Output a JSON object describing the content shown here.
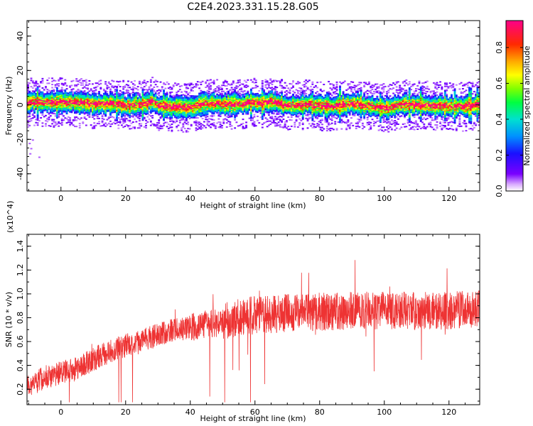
{
  "title": "C2E4.2023.331.15.28.G05",
  "chart_data": [
    {
      "type": "heatmap",
      "xlabel": "Height of straight line (km)",
      "ylabel": "Frequency (Hz)",
      "xlim": [
        -10.5,
        129.5
      ],
      "ylim": [
        -50,
        49
      ],
      "xticks": [
        0,
        20,
        40,
        60,
        80,
        100,
        120
      ],
      "yticks": [
        -40,
        -20,
        0,
        20,
        40
      ],
      "colorbar": {
        "label": "Normalized spectral amplitude",
        "range": [
          0.0,
          0.95
        ],
        "ticks": [
          0.0,
          0.2,
          0.4,
          0.6,
          0.8
        ],
        "tick_labels": [
          "0.0",
          "0.2",
          "0.4",
          "0.6",
          "0.8"
        ]
      },
      "ridge_center_hz": [
        [
          -10,
          1.5
        ],
        [
          -5,
          1.5
        ],
        [
          0,
          1.5
        ],
        [
          5,
          1.2
        ],
        [
          10,
          0.6
        ],
        [
          15,
          0.6
        ],
        [
          20,
          -0.5
        ],
        [
          25,
          0.3
        ],
        [
          28,
          2.0
        ],
        [
          30,
          -0.8
        ],
        [
          35,
          -1.3
        ],
        [
          40,
          -1.3
        ],
        [
          45,
          0.8
        ],
        [
          50,
          0.3
        ],
        [
          55,
          0.4
        ],
        [
          60,
          1.0
        ],
        [
          65,
          1.8
        ],
        [
          70,
          -0.7
        ],
        [
          75,
          0.2
        ],
        [
          80,
          -0.7
        ],
        [
          85,
          -0.6
        ],
        [
          90,
          0.6
        ],
        [
          95,
          -0.8
        ],
        [
          100,
          -2.3
        ],
        [
          105,
          0.2
        ],
        [
          110,
          0.0
        ],
        [
          115,
          -0.8
        ],
        [
          120,
          -0.9
        ],
        [
          125,
          -0.9
        ],
        [
          129,
          0.3
        ]
      ]
    },
    {
      "type": "line",
      "xlabel": "Height of straight line (km)",
      "ylabel": "SNR (10 * v/v)",
      "y_scale_label": "(x10^4)",
      "xlim": [
        -10.5,
        129.5
      ],
      "ylim": [
        0.07,
        1.5
      ],
      "xticks": [
        0,
        20,
        40,
        60,
        80,
        100,
        120
      ],
      "yticks": [
        0.2,
        0.4,
        0.6,
        0.8,
        1.0,
        1.2,
        1.4
      ],
      "ytick_labels": [
        "0.2",
        "0.4",
        "0.6",
        "0.8",
        "1.0",
        "1.2",
        "1.4"
      ],
      "series": [
        {
          "color": "#ee3333",
          "trend": [
            [
              -10,
              0.22
            ],
            [
              -5,
              0.3
            ],
            [
              0,
              0.34
            ],
            [
              5,
              0.37
            ],
            [
              8,
              0.42
            ],
            [
              12,
              0.48
            ],
            [
              18,
              0.55
            ],
            [
              25,
              0.6
            ],
            [
              30,
              0.66
            ],
            [
              35,
              0.7
            ],
            [
              40,
              0.72
            ],
            [
              45,
              0.75
            ],
            [
              50,
              0.76
            ],
            [
              55,
              0.8
            ],
            [
              60,
              0.82
            ],
            [
              70,
              0.84
            ],
            [
              80,
              0.85
            ],
            [
              90,
              0.86
            ],
            [
              100,
              0.86
            ],
            [
              110,
              0.86
            ],
            [
              120,
              0.86
            ],
            [
              129,
              0.87
            ]
          ]
        }
      ]
    }
  ]
}
